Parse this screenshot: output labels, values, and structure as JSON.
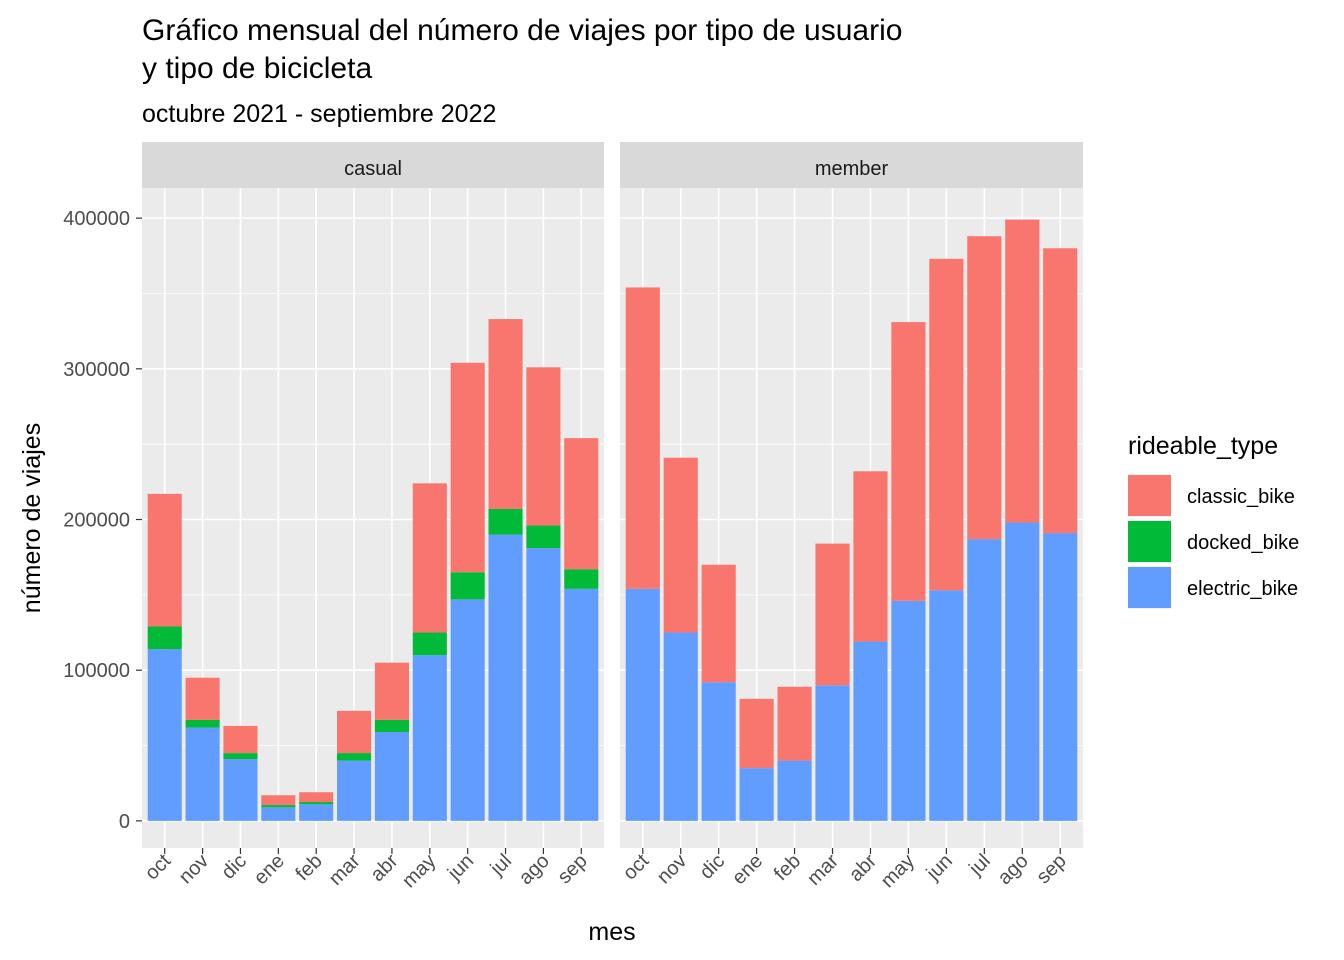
{
  "chart_data": {
    "type": "bar",
    "stacked": true,
    "title_line1": "Gráfico mensual del número de viajes por tipo de usuario",
    "title_line2": "y tipo de bicicleta",
    "subtitle": "octubre 2021 - septiembre 2022",
    "xlabel": "mes",
    "ylabel": "número de viajes",
    "ylim": [
      -18000,
      420000
    ],
    "yticks": [
      0,
      100000,
      200000,
      300000,
      400000
    ],
    "ytick_labels": [
      "0",
      "100000",
      "200000",
      "300000",
      "400000"
    ],
    "categories": [
      "oct",
      "nov",
      "dic",
      "ene",
      "feb",
      "mar",
      "abr",
      "may",
      "jun",
      "jul",
      "ago",
      "sep"
    ],
    "legend": {
      "title": "rideable_type",
      "position": "right",
      "entries": [
        "classic_bike",
        "docked_bike",
        "electric_bike"
      ]
    },
    "colors": {
      "classic_bike": "#F8766D",
      "docked_bike": "#00BA38",
      "electric_bike": "#619CFF",
      "panel_bg": "#EBEBEB",
      "strip_bg": "#D9D9D9"
    },
    "panels": [
      {
        "name": "casual",
        "series": [
          {
            "name": "electric_bike",
            "values": [
              114000,
              62000,
              41000,
              9000,
              11000,
              40000,
              59000,
              110000,
              147000,
              190000,
              181000,
              154000
            ]
          },
          {
            "name": "docked_bike",
            "values": [
              15000,
              5000,
              4000,
              1500,
              1500,
              5000,
              8000,
              15000,
              18000,
              17000,
              15000,
              13000
            ]
          },
          {
            "name": "classic_bike",
            "values": [
              88000,
              28000,
              18000,
              6500,
              6500,
              28000,
              38000,
              99000,
              139000,
              126000,
              105000,
              87000
            ]
          }
        ]
      },
      {
        "name": "member",
        "series": [
          {
            "name": "electric_bike",
            "values": [
              154000,
              125000,
              92000,
              35000,
              40000,
              90000,
              119000,
              146000,
              153000,
              187000,
              198000,
              191000
            ]
          },
          {
            "name": "docked_bike",
            "values": [
              0,
              0,
              0,
              0,
              0,
              0,
              0,
              0,
              0,
              0,
              0,
              0
            ]
          },
          {
            "name": "classic_bike",
            "values": [
              200000,
              116000,
              78000,
              46000,
              49000,
              94000,
              113000,
              185000,
              220000,
              201000,
              201000,
              189000
            ]
          }
        ]
      }
    ]
  }
}
